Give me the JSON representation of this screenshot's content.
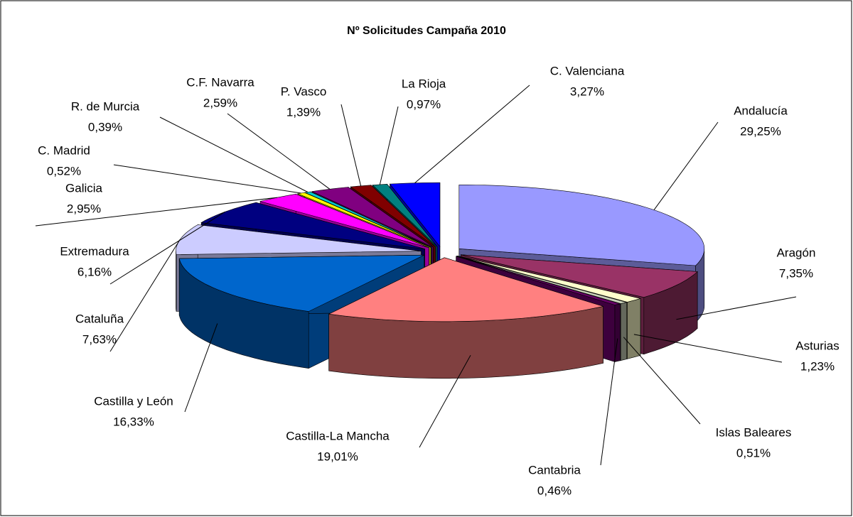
{
  "chart_data": {
    "type": "pie3d",
    "title": "Nº Solicitudes Campaña 2010",
    "categories": [
      "Andalucía",
      "Aragón",
      "Asturias",
      "Islas Baleares",
      "Cantabria",
      "Castilla-La Mancha",
      "Castilla y León",
      "Cataluña",
      "Extremadura",
      "Galicia",
      "C. Madrid",
      "R. de Murcia",
      "C.F. Navarra",
      "P. Vasco",
      "La Rioja",
      "C. Valenciana"
    ],
    "values": [
      29.25,
      7.35,
      1.23,
      0.51,
      0.46,
      19.01,
      16.33,
      7.63,
      6.16,
      2.95,
      0.52,
      0.39,
      2.59,
      1.39,
      0.97,
      3.27
    ],
    "value_labels": [
      "29,25%",
      "7,35%",
      "1,23%",
      "0,51%",
      "0,46%",
      "19,01%",
      "16,33%",
      "7,63%",
      "6,16%",
      "2,95%",
      "0,52%",
      "0,39%",
      "2,59%",
      "1,39%",
      "0,97%",
      "3,27%"
    ],
    "colors": [
      "#9999ff",
      "#993366",
      "#ffffcc",
      "#c8d0b8",
      "#660066",
      "#ff8080",
      "#0066cc",
      "#ccccff",
      "#000080",
      "#ff00ff",
      "#ffff00",
      "#00cccc",
      "#800080",
      "#800000",
      "#008080",
      "#0000ff"
    ]
  }
}
